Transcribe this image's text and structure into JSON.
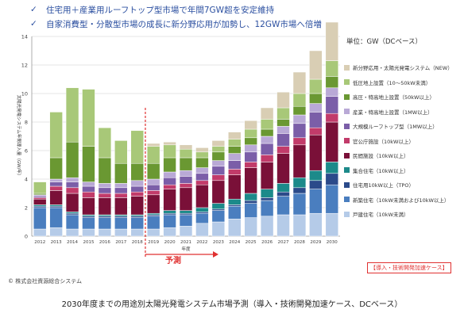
{
  "header": {
    "bullets": [
      "住宅用＋産業用ルーフトップ型市場で年間7GW超を安定維持",
      "自家消費型・分散型市場の成長に新分野応用が加勢し、12GW市場へ倍増"
    ]
  },
  "unit_label": "単位：GW（DCベース）",
  "forecast_label": "予測",
  "case_label": "【導入・技術開発加速ケース】",
  "source": "© 株式会社資源総合システム",
  "caption": "2030年度までの用途別太陽光発電システム市場予測（導入・技術開発加速ケース、DCベース）",
  "chart_data": {
    "type": "bar",
    "stacked": true,
    "title": "",
    "xlabel": "年度",
    "ylabel": "太陽光発電システム年間導入量（GW/年）",
    "ylim": [
      0,
      14
    ],
    "yticks": [
      0,
      2,
      4,
      6,
      8,
      10,
      12,
      14
    ],
    "categories": [
      "2012",
      "2013",
      "2014",
      "2015",
      "2016",
      "2017",
      "2018",
      "2019",
      "2020",
      "2021",
      "2022",
      "2023",
      "2024",
      "2025",
      "2026",
      "2027",
      "2028",
      "2029",
      "2030"
    ],
    "forecast_start": "2019",
    "series": [
      {
        "name": "戸建住宅（10kW未満）",
        "color": "#b5cbe8",
        "values": [
          0.5,
          0.6,
          0.5,
          0.5,
          0.5,
          0.5,
          0.5,
          0.5,
          0.6,
          0.7,
          0.9,
          1.0,
          1.2,
          1.3,
          1.4,
          1.5,
          1.5,
          1.6,
          1.6
        ]
      },
      {
        "name": "新築住宅（10kW未満および10kW以上）",
        "color": "#4a7ebf",
        "values": [
          1.5,
          1.4,
          1.0,
          0.8,
          0.8,
          0.8,
          0.8,
          0.9,
          0.9,
          0.8,
          0.7,
          0.8,
          0.9,
          1.0,
          1.1,
          1.3,
          1.5,
          1.7,
          2.0
        ]
      },
      {
        "name": "住宅用10kW以上（TPO）",
        "color": "#2b4a8a",
        "values": [
          0.1,
          0.1,
          0.1,
          0.1,
          0.1,
          0.1,
          0.1,
          0.1,
          0.1,
          0.1,
          0.1,
          0.1,
          0.1,
          0.2,
          0.2,
          0.3,
          0.4,
          0.6,
          0.8
        ]
      },
      {
        "name": "集合住宅（10kW以上）",
        "color": "#1c8a8a",
        "values": [
          0.1,
          0.1,
          0.1,
          0.1,
          0.1,
          0.1,
          0.1,
          0.1,
          0.2,
          0.2,
          0.3,
          0.4,
          0.4,
          0.5,
          0.6,
          0.6,
          0.7,
          0.7,
          0.8
        ]
      },
      {
        "name": "民間施設（10kW以上）",
        "color": "#7a1038",
        "values": [
          0.4,
          1.0,
          1.3,
          1.2,
          1.2,
          1.2,
          1.3,
          1.3,
          1.5,
          1.6,
          1.6,
          1.6,
          1.7,
          1.8,
          1.9,
          2.1,
          2.3,
          2.5,
          2.8
        ]
      },
      {
        "name": "官公庁施設（10kW以上）",
        "color": "#c23b6a",
        "values": [
          0.1,
          0.3,
          0.4,
          0.4,
          0.3,
          0.3,
          0.3,
          0.3,
          0.3,
          0.3,
          0.3,
          0.4,
          0.4,
          0.4,
          0.5,
          0.5,
          0.5,
          0.5,
          0.6
        ]
      },
      {
        "name": "大規模ルーフトップ型（1MW以上）",
        "color": "#7b5ea8",
        "values": [
          0.1,
          0.3,
          0.4,
          0.4,
          0.4,
          0.4,
          0.4,
          0.4,
          0.5,
          0.5,
          0.5,
          0.6,
          0.6,
          0.7,
          0.8,
          0.9,
          1.0,
          1.1,
          1.2
        ]
      },
      {
        "name": "産業・特高地上設置（1MW以上）",
        "color": "#b9a9d6",
        "values": [
          0.1,
          0.2,
          0.3,
          0.3,
          0.3,
          0.3,
          0.4,
          0.4,
          0.4,
          0.4,
          0.4,
          0.4,
          0.5,
          0.5,
          0.5,
          0.5,
          0.6,
          0.6,
          0.6
        ]
      },
      {
        "name": "高圧・特高地上設置（50kW以上）",
        "color": "#6a9832",
        "values": [
          0.1,
          1.5,
          2.5,
          2.5,
          1.8,
          1.4,
          1.2,
          1.1,
          1.0,
          0.9,
          0.7,
          0.6,
          0.5,
          0.5,
          0.5,
          0.5,
          0.6,
          0.7,
          0.8
        ]
      },
      {
        "name": "低圧地上設置（10～50kW未満）",
        "color": "#a8c878",
        "values": [
          0.8,
          3.2,
          3.8,
          4.0,
          2.1,
          1.6,
          2.3,
          1.2,
          0.9,
          0.6,
          0.4,
          0.4,
          0.5,
          0.6,
          0.7,
          0.8,
          0.9,
          1.0,
          1.1
        ]
      },
      {
        "name": "新分野応用・太陽光発電システム（NEW）",
        "color": "#d9ceb4",
        "values": [
          0,
          0,
          0,
          0,
          0,
          0,
          0,
          0.2,
          0.2,
          0.3,
          0.3,
          0.4,
          0.5,
          0.6,
          0.8,
          1.1,
          1.5,
          2.0,
          2.7
        ]
      }
    ],
    "grid": true,
    "legend": "right"
  }
}
